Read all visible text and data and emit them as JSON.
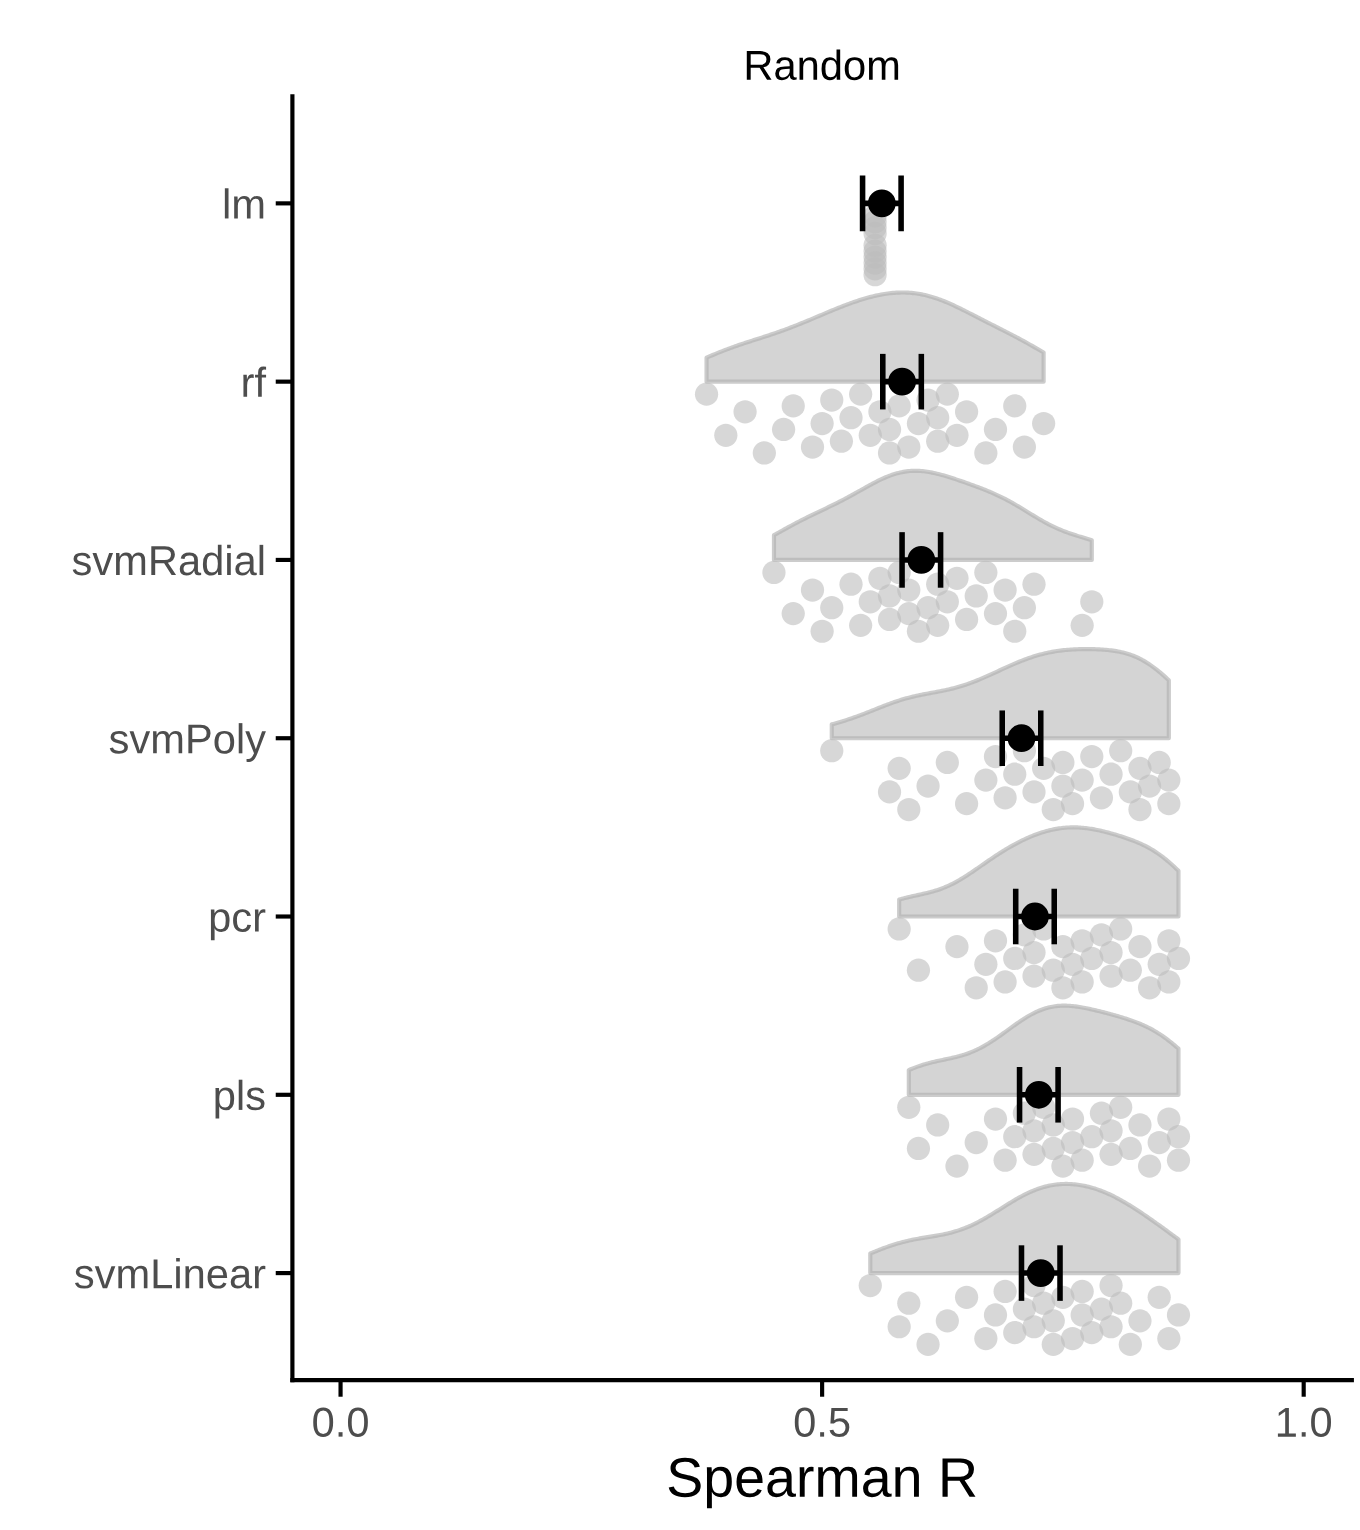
{
  "chart_data": {
    "type": "scatter",
    "title": "Random",
    "xlabel": "Spearman R",
    "orientation": "horizontal",
    "categories": [
      "lm",
      "rf",
      "svmRadial",
      "svmPoly",
      "pcr",
      "pls",
      "svmLinear"
    ],
    "xlim": [
      -0.05,
      1.05
    ],
    "xticks": [
      {
        "value": 0,
        "label": "0.0"
      },
      {
        "value": 0.5,
        "label": "0.5"
      },
      {
        "value": 1,
        "label": "1.0"
      }
    ],
    "grid": false,
    "series": [
      {
        "color": "#bdbdbd",
        "marker": "circle",
        "x": [
          "lm",
          "lm",
          "lm",
          "lm",
          "lm",
          "lm",
          "lm",
          "lm",
          "lm",
          "lm",
          "rf",
          "rf",
          "rf",
          "rf",
          "rf",
          "rf",
          "rf",
          "rf",
          "rf",
          "rf",
          "rf",
          "rf",
          "rf",
          "rf",
          "rf",
          "rf",
          "rf",
          "rf",
          "rf",
          "rf",
          "rf",
          "rf",
          "rf",
          "rf",
          "rf",
          "rf",
          "rf",
          "rf",
          "rf",
          "rf",
          "svmRadial",
          "svmRadial",
          "svmRadial",
          "svmRadial",
          "svmRadial",
          "svmRadial",
          "svmRadial",
          "svmRadial",
          "svmRadial",
          "svmRadial",
          "svmRadial",
          "svmRadial",
          "svmRadial",
          "svmRadial",
          "svmRadial",
          "svmRadial",
          "svmRadial",
          "svmRadial",
          "svmRadial",
          "svmRadial",
          "svmRadial",
          "svmRadial",
          "svmRadial",
          "svmRadial",
          "svmRadial",
          "svmRadial",
          "svmRadial",
          "svmRadial",
          "svmRadial",
          "svmRadial",
          "svmPoly",
          "svmPoly",
          "svmPoly",
          "svmPoly",
          "svmPoly",
          "svmPoly",
          "svmPoly",
          "svmPoly",
          "svmPoly",
          "svmPoly",
          "svmPoly",
          "svmPoly",
          "svmPoly",
          "svmPoly",
          "svmPoly",
          "svmPoly",
          "svmPoly",
          "svmPoly",
          "svmPoly",
          "svmPoly",
          "svmPoly",
          "svmPoly",
          "svmPoly",
          "svmPoly",
          "svmPoly",
          "svmPoly",
          "svmPoly",
          "svmPoly",
          "svmPoly",
          "svmPoly",
          "pcr",
          "pcr",
          "pcr",
          "pcr",
          "pcr",
          "pcr",
          "pcr",
          "pcr",
          "pcr",
          "pcr",
          "pcr",
          "pcr",
          "pcr",
          "pcr",
          "pcr",
          "pcr",
          "pcr",
          "pcr",
          "pcr",
          "pcr",
          "pcr",
          "pcr",
          "pcr",
          "pcr",
          "pcr",
          "pcr",
          "pcr",
          "pcr",
          "pcr",
          "pcr",
          "pls",
          "pls",
          "pls",
          "pls",
          "pls",
          "pls",
          "pls",
          "pls",
          "pls",
          "pls",
          "pls",
          "pls",
          "pls",
          "pls",
          "pls",
          "pls",
          "pls",
          "pls",
          "pls",
          "pls",
          "pls",
          "pls",
          "pls",
          "pls",
          "pls",
          "pls",
          "pls",
          "pls",
          "pls",
          "pls",
          "svmLinear",
          "svmLinear",
          "svmLinear",
          "svmLinear",
          "svmLinear",
          "svmLinear",
          "svmLinear",
          "svmLinear",
          "svmLinear",
          "svmLinear",
          "svmLinear",
          "svmLinear",
          "svmLinear",
          "svmLinear",
          "svmLinear",
          "svmLinear",
          "svmLinear",
          "svmLinear",
          "svmLinear",
          "svmLinear",
          "svmLinear",
          "svmLinear",
          "svmLinear",
          "svmLinear",
          "svmLinear",
          "svmLinear",
          "svmLinear",
          "svmLinear",
          "svmLinear",
          "svmLinear"
        ],
        "values": [
          0.555,
          0.555,
          0.555,
          0.555,
          0.555,
          0.555,
          0.555,
          0.555,
          0.555,
          0.555,
          0.38,
          0.4,
          0.42,
          0.44,
          0.46,
          0.47,
          0.49,
          0.5,
          0.51,
          0.52,
          0.53,
          0.54,
          0.55,
          0.56,
          0.57,
          0.57,
          0.58,
          0.59,
          0.6,
          0.61,
          0.62,
          0.62,
          0.63,
          0.64,
          0.65,
          0.67,
          0.68,
          0.7,
          0.71,
          0.73,
          0.45,
          0.47,
          0.49,
          0.5,
          0.51,
          0.53,
          0.54,
          0.55,
          0.56,
          0.57,
          0.57,
          0.58,
          0.59,
          0.59,
          0.6,
          0.61,
          0.62,
          0.62,
          0.63,
          0.64,
          0.65,
          0.66,
          0.67,
          0.68,
          0.69,
          0.7,
          0.71,
          0.72,
          0.77,
          0.78,
          0.51,
          0.57,
          0.58,
          0.59,
          0.61,
          0.63,
          0.65,
          0.67,
          0.68,
          0.69,
          0.7,
          0.71,
          0.72,
          0.73,
          0.74,
          0.75,
          0.75,
          0.76,
          0.77,
          0.78,
          0.79,
          0.8,
          0.81,
          0.82,
          0.83,
          0.83,
          0.84,
          0.85,
          0.86,
          0.86,
          0.58,
          0.6,
          0.64,
          0.66,
          0.67,
          0.68,
          0.69,
          0.7,
          0.71,
          0.72,
          0.72,
          0.73,
          0.74,
          0.75,
          0.75,
          0.76,
          0.77,
          0.77,
          0.78,
          0.79,
          0.8,
          0.8,
          0.81,
          0.82,
          0.83,
          0.84,
          0.85,
          0.86,
          0.86,
          0.87,
          0.59,
          0.6,
          0.62,
          0.64,
          0.66,
          0.68,
          0.69,
          0.7,
          0.71,
          0.72,
          0.72,
          0.73,
          0.74,
          0.74,
          0.75,
          0.76,
          0.76,
          0.77,
          0.78,
          0.79,
          0.8,
          0.8,
          0.81,
          0.82,
          0.83,
          0.84,
          0.85,
          0.86,
          0.87,
          0.87,
          0.55,
          0.58,
          0.59,
          0.61,
          0.63,
          0.65,
          0.67,
          0.68,
          0.69,
          0.7,
          0.71,
          0.72,
          0.72,
          0.73,
          0.74,
          0.74,
          0.75,
          0.76,
          0.77,
          0.77,
          0.78,
          0.79,
          0.8,
          0.8,
          0.81,
          0.82,
          0.83,
          0.85,
          0.86,
          0.87
        ]
      },
      {
        "color": "#000000",
        "marker": "circle",
        "x": [
          "lm",
          "rf",
          "svmRadial",
          "svmPoly",
          "pcr",
          "pls",
          "svmLinear"
        ],
        "values": [
          0.562,
          0.583,
          0.603,
          0.707,
          0.721,
          0.725,
          0.727
        ],
        "errors": [
          0.02,
          0.02,
          0.02,
          0.02,
          0.02,
          0.02,
          0.02
        ]
      }
    ]
  }
}
